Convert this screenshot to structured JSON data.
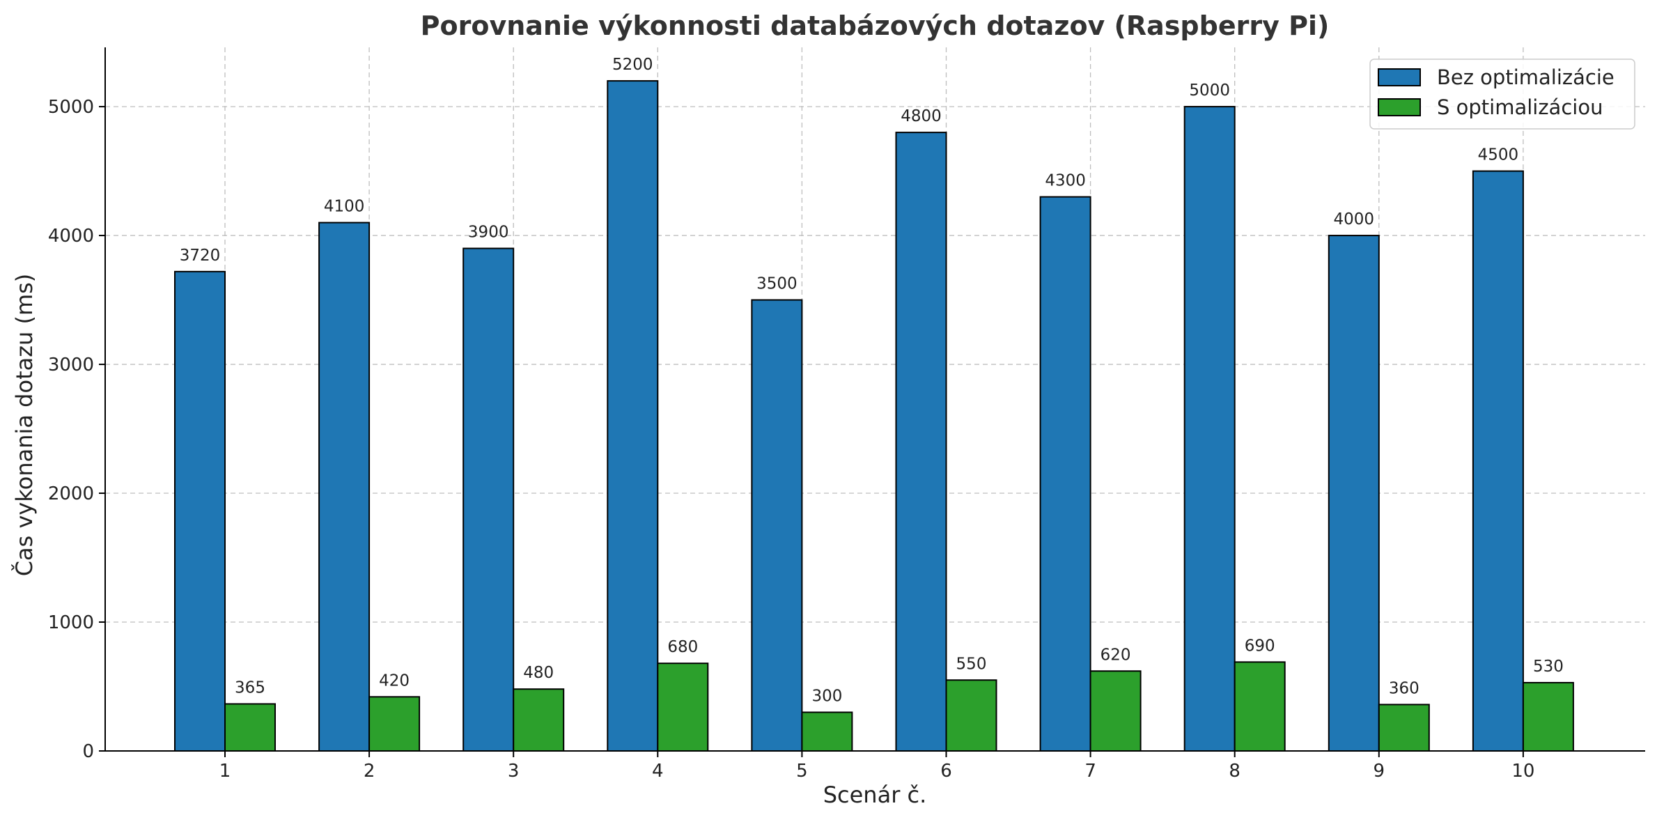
{
  "chart_data": {
    "type": "bar",
    "title": "Porovnanie výkonnosti databázových dotazov (Raspberry Pi)",
    "xlabel": "Scenár č.",
    "ylabel": "Čas vykonania dotazu (ms)",
    "categories": [
      "1",
      "2",
      "3",
      "4",
      "5",
      "6",
      "7",
      "8",
      "9",
      "10"
    ],
    "series": [
      {
        "name": "Bez optimalizácie",
        "color": "#1f77b4",
        "values": [
          3720,
          4100,
          3900,
          5200,
          3500,
          4800,
          4300,
          5000,
          4000,
          4500
        ]
      },
      {
        "name": "S optimalizáciou",
        "color": "#2ca02c",
        "values": [
          365,
          420,
          480,
          680,
          300,
          550,
          620,
          690,
          360,
          530
        ]
      }
    ],
    "ylim": [
      0,
      5460
    ],
    "yticks": [
      0,
      1000,
      2000,
      3000,
      4000,
      5000
    ],
    "grid": true,
    "legend_position": "top-right"
  }
}
